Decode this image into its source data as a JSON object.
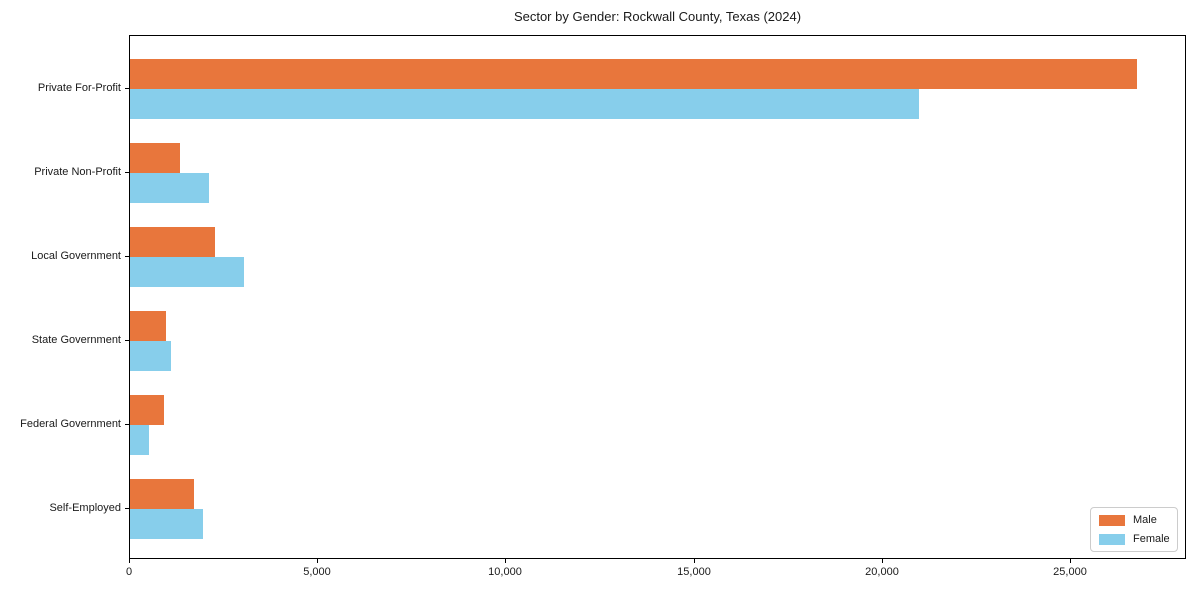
{
  "title": "Sector by Gender: Rockwall County, Texas (2024)",
  "chart_data": {
    "type": "bar",
    "orientation": "horizontal",
    "title": "Sector by Gender: Rockwall County, Texas (2024)",
    "categories": [
      "Private For-Profit",
      "Private Non-Profit",
      "Local Government",
      "State Government",
      "Federal Government",
      "Self-Employed"
    ],
    "series": [
      {
        "name": "Male",
        "color": "#e8763c",
        "values": [
          26750,
          1330,
          2260,
          960,
          900,
          1700
        ]
      },
      {
        "name": "Female",
        "color": "#87ceeb",
        "values": [
          20960,
          2100,
          3030,
          1090,
          500,
          1940
        ]
      }
    ],
    "xlabel": "",
    "ylabel": "",
    "xlim": [
      0,
      28080
    ],
    "xticks": [
      0,
      5000,
      10000,
      15000,
      20000,
      25000
    ],
    "xtick_labels": [
      "0",
      "5,000",
      "10,000",
      "15,000",
      "20,000",
      "25,000"
    ],
    "grid": false,
    "legend": {
      "position": "lower right"
    }
  },
  "colors": {
    "male": "#e8763c",
    "female": "#87ceeb",
    "spine": "#000000",
    "text": "#1a1a1a",
    "legend_border": "#cccccc"
  }
}
